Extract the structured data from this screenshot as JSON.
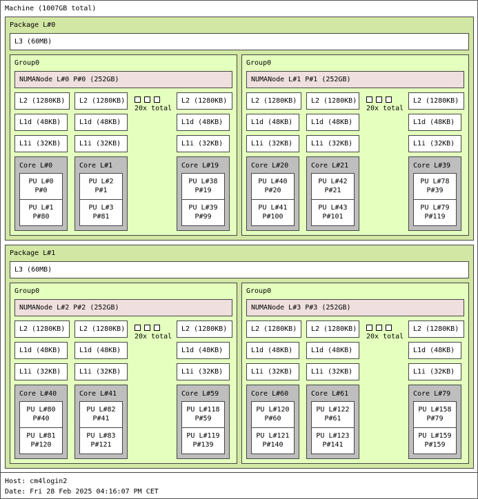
{
  "machine": {
    "label": "Machine (1007GB total)"
  },
  "packages": [
    {
      "label": "Package L#0",
      "l3": "L3 (60MB)",
      "groups": [
        {
          "label": "Group0",
          "numa": "NUMANode L#0 P#0 (252GB)",
          "l2": "L2 (1280KB)",
          "l1d": "L1d (48KB)",
          "l1i": "L1i (32KB)",
          "more": "20x total",
          "cores": [
            {
              "label": "Core L#0",
              "pus": [
                [
                  "PU L#0",
                  "P#0"
                ],
                [
                  "PU L#1",
                  "P#80"
                ]
              ]
            },
            {
              "label": "Core L#1",
              "pus": [
                [
                  "PU L#2",
                  "P#1"
                ],
                [
                  "PU L#3",
                  "P#81"
                ]
              ]
            },
            {
              "label": "Core L#19",
              "pus": [
                [
                  "PU L#38",
                  "P#19"
                ],
                [
                  "PU L#39",
                  "P#99"
                ]
              ]
            }
          ]
        },
        {
          "label": "Group0",
          "numa": "NUMANode L#1 P#1 (252GB)",
          "l2": "L2 (1280KB)",
          "l1d": "L1d (48KB)",
          "l1i": "L1i (32KB)",
          "more": "20x total",
          "cores": [
            {
              "label": "Core L#20",
              "pus": [
                [
                  "PU L#40",
                  "P#20"
                ],
                [
                  "PU L#41",
                  "P#100"
                ]
              ]
            },
            {
              "label": "Core L#21",
              "pus": [
                [
                  "PU L#42",
                  "P#21"
                ],
                [
                  "PU L#43",
                  "P#101"
                ]
              ]
            },
            {
              "label": "Core L#39",
              "pus": [
                [
                  "PU L#78",
                  "P#39"
                ],
                [
                  "PU L#79",
                  "P#119"
                ]
              ]
            }
          ]
        }
      ]
    },
    {
      "label": "Package L#1",
      "l3": "L3 (60MB)",
      "groups": [
        {
          "label": "Group0",
          "numa": "NUMANode L#2 P#2 (252GB)",
          "l2": "L2 (1280KB)",
          "l1d": "L1d (48KB)",
          "l1i": "L1i (32KB)",
          "more": "20x total",
          "cores": [
            {
              "label": "Core L#40",
              "pus": [
                [
                  "PU L#80",
                  "P#40"
                ],
                [
                  "PU L#81",
                  "P#120"
                ]
              ]
            },
            {
              "label": "Core L#41",
              "pus": [
                [
                  "PU L#82",
                  "P#41"
                ],
                [
                  "PU L#83",
                  "P#121"
                ]
              ]
            },
            {
              "label": "Core L#59",
              "pus": [
                [
                  "PU L#118",
                  "P#59"
                ],
                [
                  "PU L#119",
                  "P#139"
                ]
              ]
            }
          ]
        },
        {
          "label": "Group0",
          "numa": "NUMANode L#3 P#3 (252GB)",
          "l2": "L2 (1280KB)",
          "l1d": "L1d (48KB)",
          "l1i": "L1i (32KB)",
          "more": "20x total",
          "cores": [
            {
              "label": "Core L#60",
              "pus": [
                [
                  "PU L#120",
                  "P#60"
                ],
                [
                  "PU L#121",
                  "P#140"
                ]
              ]
            },
            {
              "label": "Core L#61",
              "pus": [
                [
                  "PU L#122",
                  "P#61"
                ],
                [
                  "PU L#123",
                  "P#141"
                ]
              ]
            },
            {
              "label": "Core L#79",
              "pus": [
                [
                  "PU L#158",
                  "P#79"
                ],
                [
                  "PU L#159",
                  "P#159"
                ]
              ]
            }
          ]
        }
      ]
    }
  ],
  "footer": {
    "host": "Host: cm4login2",
    "date": "Date: Fri 28 Feb 2025 04:16:07 PM CET"
  },
  "colors": {
    "package": "#d2e7a4",
    "group": "#e4ffbe",
    "numa": "#efdfde",
    "core": "#bebebe",
    "cache": "#ffffff"
  }
}
